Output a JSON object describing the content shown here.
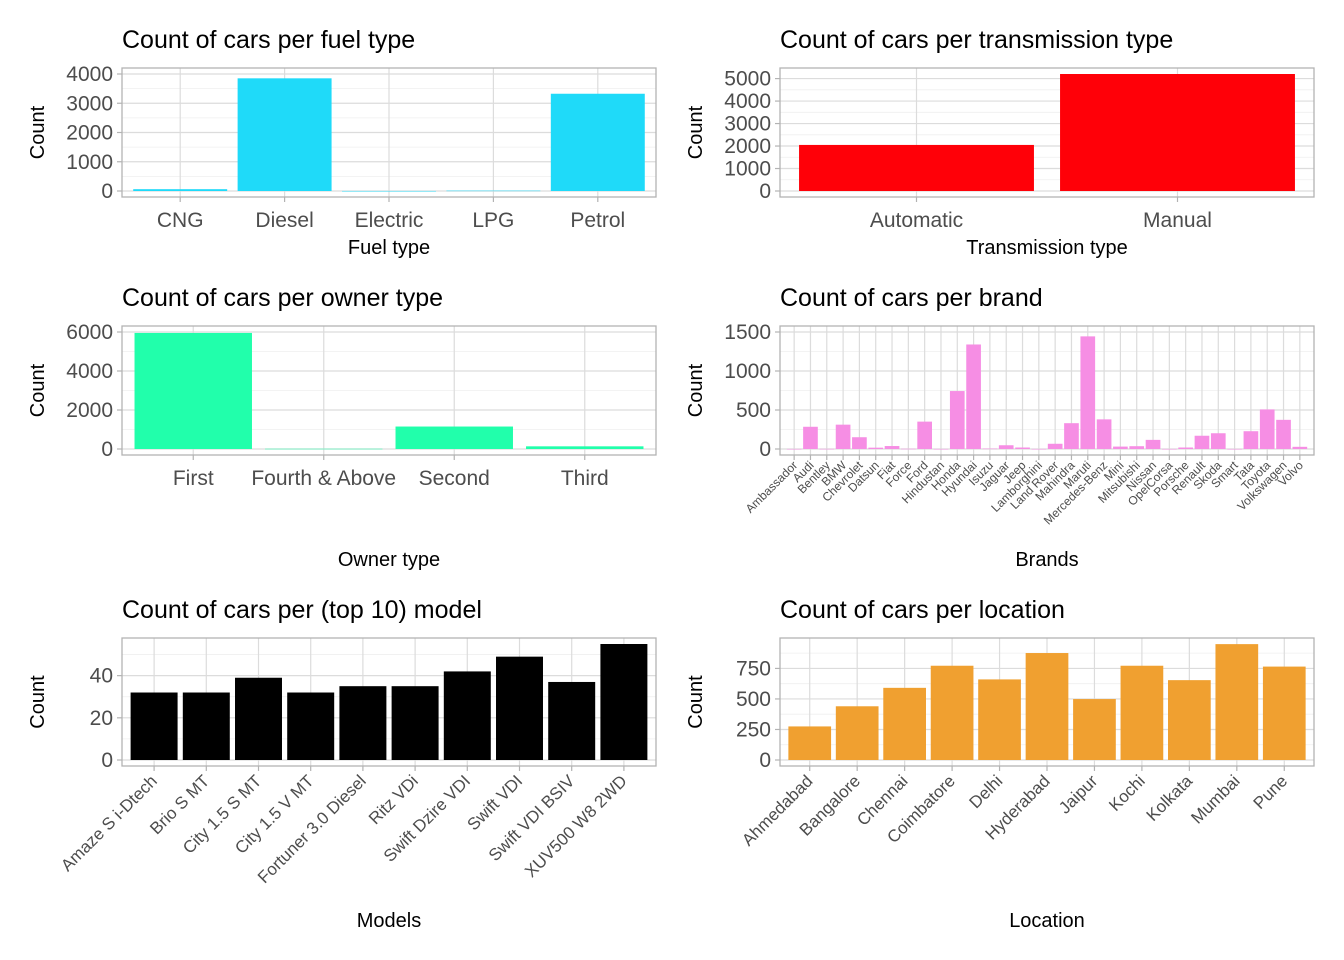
{
  "chart_data": [
    {
      "type": "bar",
      "title": "Count of cars per fuel type",
      "xlabel": "Fuel type",
      "ylabel": "Count",
      "categories": [
        "CNG",
        "Diesel",
        "Electric",
        "LPG",
        "Petrol"
      ],
      "values": [
        62,
        3852,
        2,
        12,
        3325
      ],
      "ylim": [
        0,
        4000
      ],
      "yticks": [
        0,
        1000,
        2000,
        3000,
        4000
      ],
      "color": "#1fdaf9"
    },
    {
      "type": "bar",
      "title": "Count of cars per transmission type",
      "xlabel": "Transmission type",
      "ylabel": "Count",
      "categories": [
        "Automatic",
        "Manual"
      ],
      "values": [
        2049,
        5204
      ],
      "ylim": [
        0,
        5000
      ],
      "yticks": [
        0,
        1000,
        2000,
        3000,
        4000,
        5000
      ],
      "color": "#ff0008"
    },
    {
      "type": "bar",
      "title": "Count of cars per owner type",
      "xlabel": "Owner type",
      "ylabel": "Count",
      "categories": [
        "First",
        "Fourth & Above",
        "Second",
        "Third"
      ],
      "values": [
        5952,
        12,
        1152,
        137
      ],
      "ylim": [
        0,
        6000
      ],
      "yticks": [
        0,
        2000,
        4000,
        6000
      ],
      "color": "#21ffab"
    },
    {
      "type": "bar",
      "title": "Count of cars per brand",
      "xlabel": "Brands",
      "ylabel": "Count",
      "categories": [
        "Ambassador",
        "Audi",
        "Bentley",
        "BMW",
        "Chevrolet",
        "Datsun",
        "Fiat",
        "Force",
        "Ford",
        "Hindustan",
        "Honda",
        "Hyundai",
        "Isuzu",
        "Jaguar",
        "Jeep",
        "Lamborghini",
        "Land Rover",
        "Mahindra",
        "Maruti",
        "Mercedes-Benz",
        "Mini",
        "Mitsubishi",
        "Nissan",
        "OpelCorsa",
        "Porsche",
        "Renault",
        "Skoda",
        "Smart",
        "Tata",
        "Toyota",
        "Volkswagen",
        "Volvo"
      ],
      "values": [
        1,
        285,
        2,
        312,
        151,
        17,
        38,
        3,
        351,
        1,
        743,
        1340,
        5,
        48,
        19,
        1,
        67,
        331,
        1444,
        380,
        31,
        36,
        117,
        1,
        19,
        170,
        202,
        1,
        228,
        507,
        374,
        28
      ],
      "ylim": [
        0,
        1500
      ],
      "yticks": [
        0,
        500,
        1000,
        1500
      ],
      "color": "#f68ee4"
    },
    {
      "type": "bar",
      "title": "Count of cars per (top 10) model",
      "xlabel": "Models",
      "ylabel": "Count",
      "categories": [
        "Amaze S i-Dtech",
        "Brio S MT",
        "City 1.5 S MT",
        "City 1.5 V MT",
        "Fortuner 3.0 Diesel",
        "Ritz VDi",
        "Swift Dzire VDI",
        "Swift VDI",
        "Swift VDI BSIV",
        "XUV500 W8 2WD"
      ],
      "values": [
        32,
        32,
        39,
        32,
        35,
        35,
        42,
        49,
        37,
        55
      ],
      "ylim": [
        0,
        55
      ],
      "yticks": [
        0,
        20,
        40
      ],
      "color": "#000000"
    },
    {
      "type": "bar",
      "title": "Count of cars per location",
      "xlabel": "Location",
      "ylabel": "Count",
      "categories": [
        "Ahmedabad",
        "Bangalore",
        "Chennai",
        "Coimbatore",
        "Delhi",
        "Hyderabad",
        "Jaipur",
        "Kochi",
        "Kolkata",
        "Mumbai",
        "Pune"
      ],
      "values": [
        275,
        440,
        591,
        772,
        660,
        876,
        499,
        772,
        654,
        949,
        765
      ],
      "ylim": [
        0,
        950
      ],
      "yticks": [
        0,
        250,
        500,
        750
      ],
      "color": "#f0a030"
    }
  ]
}
